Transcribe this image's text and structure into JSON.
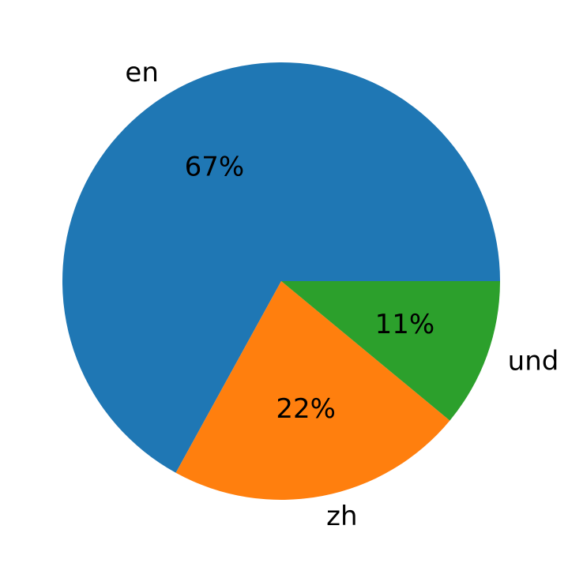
{
  "chart_data": {
    "type": "pie",
    "categories": [
      "en",
      "zh",
      "und"
    ],
    "values": [
      67,
      22,
      11
    ],
    "value_labels": [
      "67%",
      "22%",
      "11%"
    ],
    "colors": [
      "#1f77b4",
      "#ff7f0e",
      "#2ca02c"
    ]
  }
}
